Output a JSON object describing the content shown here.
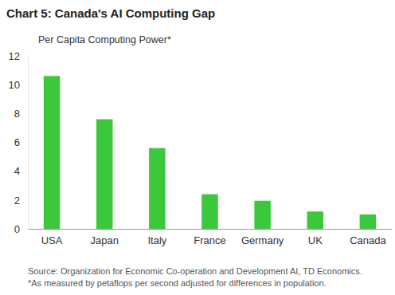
{
  "chart_data": {
    "type": "bar",
    "title": "Chart 5: Canada's AI Computing Gap",
    "y_label": "Per Capita Computing Power*",
    "categories": [
      "USA",
      "Japan",
      "Italy",
      "France",
      "Germany",
      "UK",
      "Canada"
    ],
    "values": [
      10.6,
      7.6,
      5.6,
      2.4,
      1.95,
      1.2,
      1.0
    ],
    "color": "#3cc83c",
    "ylim": [
      0,
      12
    ],
    "yticks": [
      0,
      2,
      4,
      6,
      8,
      10,
      12
    ],
    "grid": false,
    "source": "Source: Organization for Economic Co-operation and Development AI, TD Economics.",
    "footnote": "*As measured by petaflops per second adjusted for differences in population."
  }
}
